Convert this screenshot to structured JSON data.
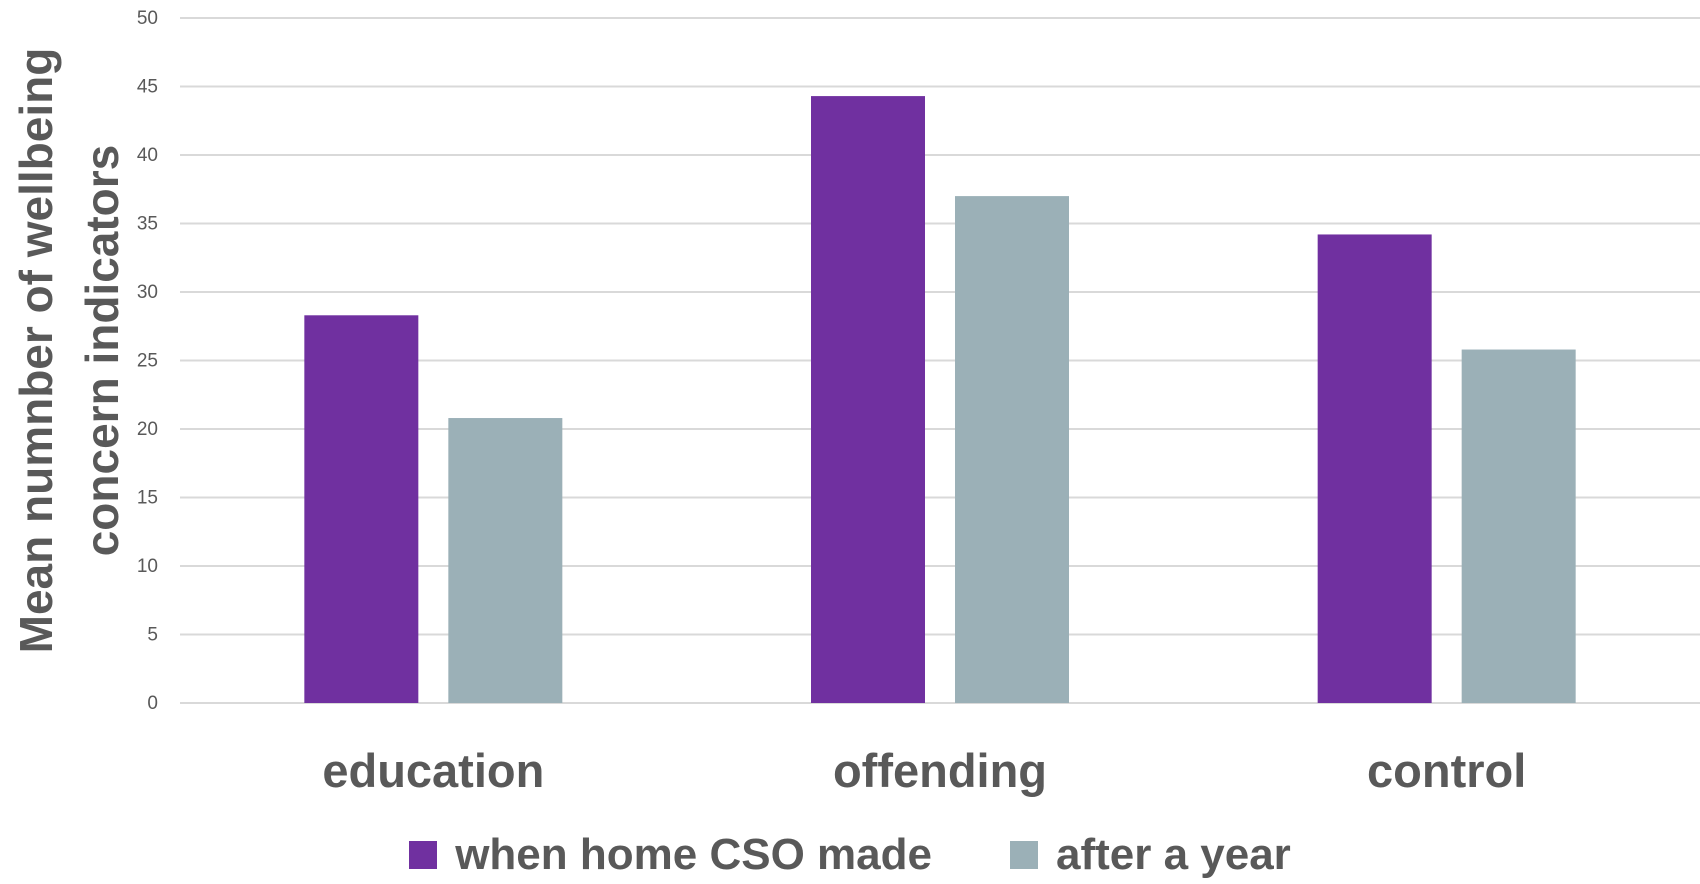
{
  "chart_data": {
    "type": "bar",
    "title": "",
    "xlabel": "",
    "ylabel": "Mean numnber of wellbeing concern indicators",
    "ylabel_lines": [
      "Mean numnber of wellbeing",
      "concern indicators"
    ],
    "ylim": [
      0,
      50
    ],
    "yticks": [
      0,
      5,
      10,
      15,
      20,
      25,
      30,
      35,
      40,
      45,
      50
    ],
    "grid": true,
    "legend_position": "bottom",
    "categories": [
      "education",
      "offending",
      "control"
    ],
    "series": [
      {
        "name": "when home CSO made",
        "color": "#7030A0",
        "values": [
          28.3,
          44.3,
          34.2
        ]
      },
      {
        "name": "after a year",
        "color": "#9BB0B7",
        "values": [
          20.8,
          37.0,
          25.8
        ]
      }
    ],
    "colors": {
      "gridline": "#D9D9D9",
      "axis_text": "#595959",
      "background": "#FFFFFF"
    }
  }
}
